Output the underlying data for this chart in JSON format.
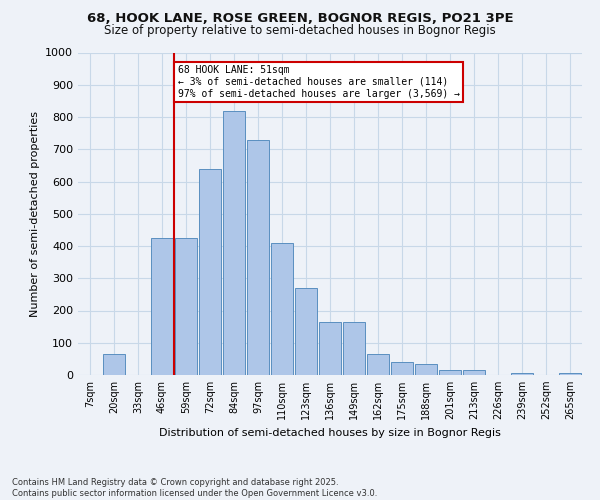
{
  "title_line1": "68, HOOK LANE, ROSE GREEN, BOGNOR REGIS, PO21 3PE",
  "title_line2": "Size of property relative to semi-detached houses in Bognor Regis",
  "xlabel": "Distribution of semi-detached houses by size in Bognor Regis",
  "ylabel": "Number of semi-detached properties",
  "categories": [
    "7sqm",
    "20sqm",
    "33sqm",
    "46sqm",
    "59sqm",
    "72sqm",
    "84sqm",
    "97sqm",
    "110sqm",
    "123sqm",
    "136sqm",
    "149sqm",
    "162sqm",
    "175sqm",
    "188sqm",
    "201sqm",
    "213sqm",
    "226sqm",
    "239sqm",
    "252sqm",
    "265sqm"
  ],
  "values": [
    0,
    65,
    0,
    425,
    425,
    640,
    820,
    730,
    410,
    270,
    165,
    165,
    65,
    40,
    35,
    15,
    15,
    0,
    5,
    0,
    5
  ],
  "bar_color": "#aec6e8",
  "bar_edge_color": "#5a8fc0",
  "grid_color": "#c8d8e8",
  "background_color": "#eef2f8",
  "vline_x": 3.5,
  "vline_color": "#cc0000",
  "annotation_text": "68 HOOK LANE: 51sqm\n← 3% of semi-detached houses are smaller (114)\n97% of semi-detached houses are larger (3,569) →",
  "annotation_box_color": "#ffffff",
  "annotation_box_edge": "#cc0000",
  "footnote": "Contains HM Land Registry data © Crown copyright and database right 2025.\nContains public sector information licensed under the Open Government Licence v3.0.",
  "ylim": [
    0,
    1000
  ],
  "yticks": [
    0,
    100,
    200,
    300,
    400,
    500,
    600,
    700,
    800,
    900,
    1000
  ]
}
